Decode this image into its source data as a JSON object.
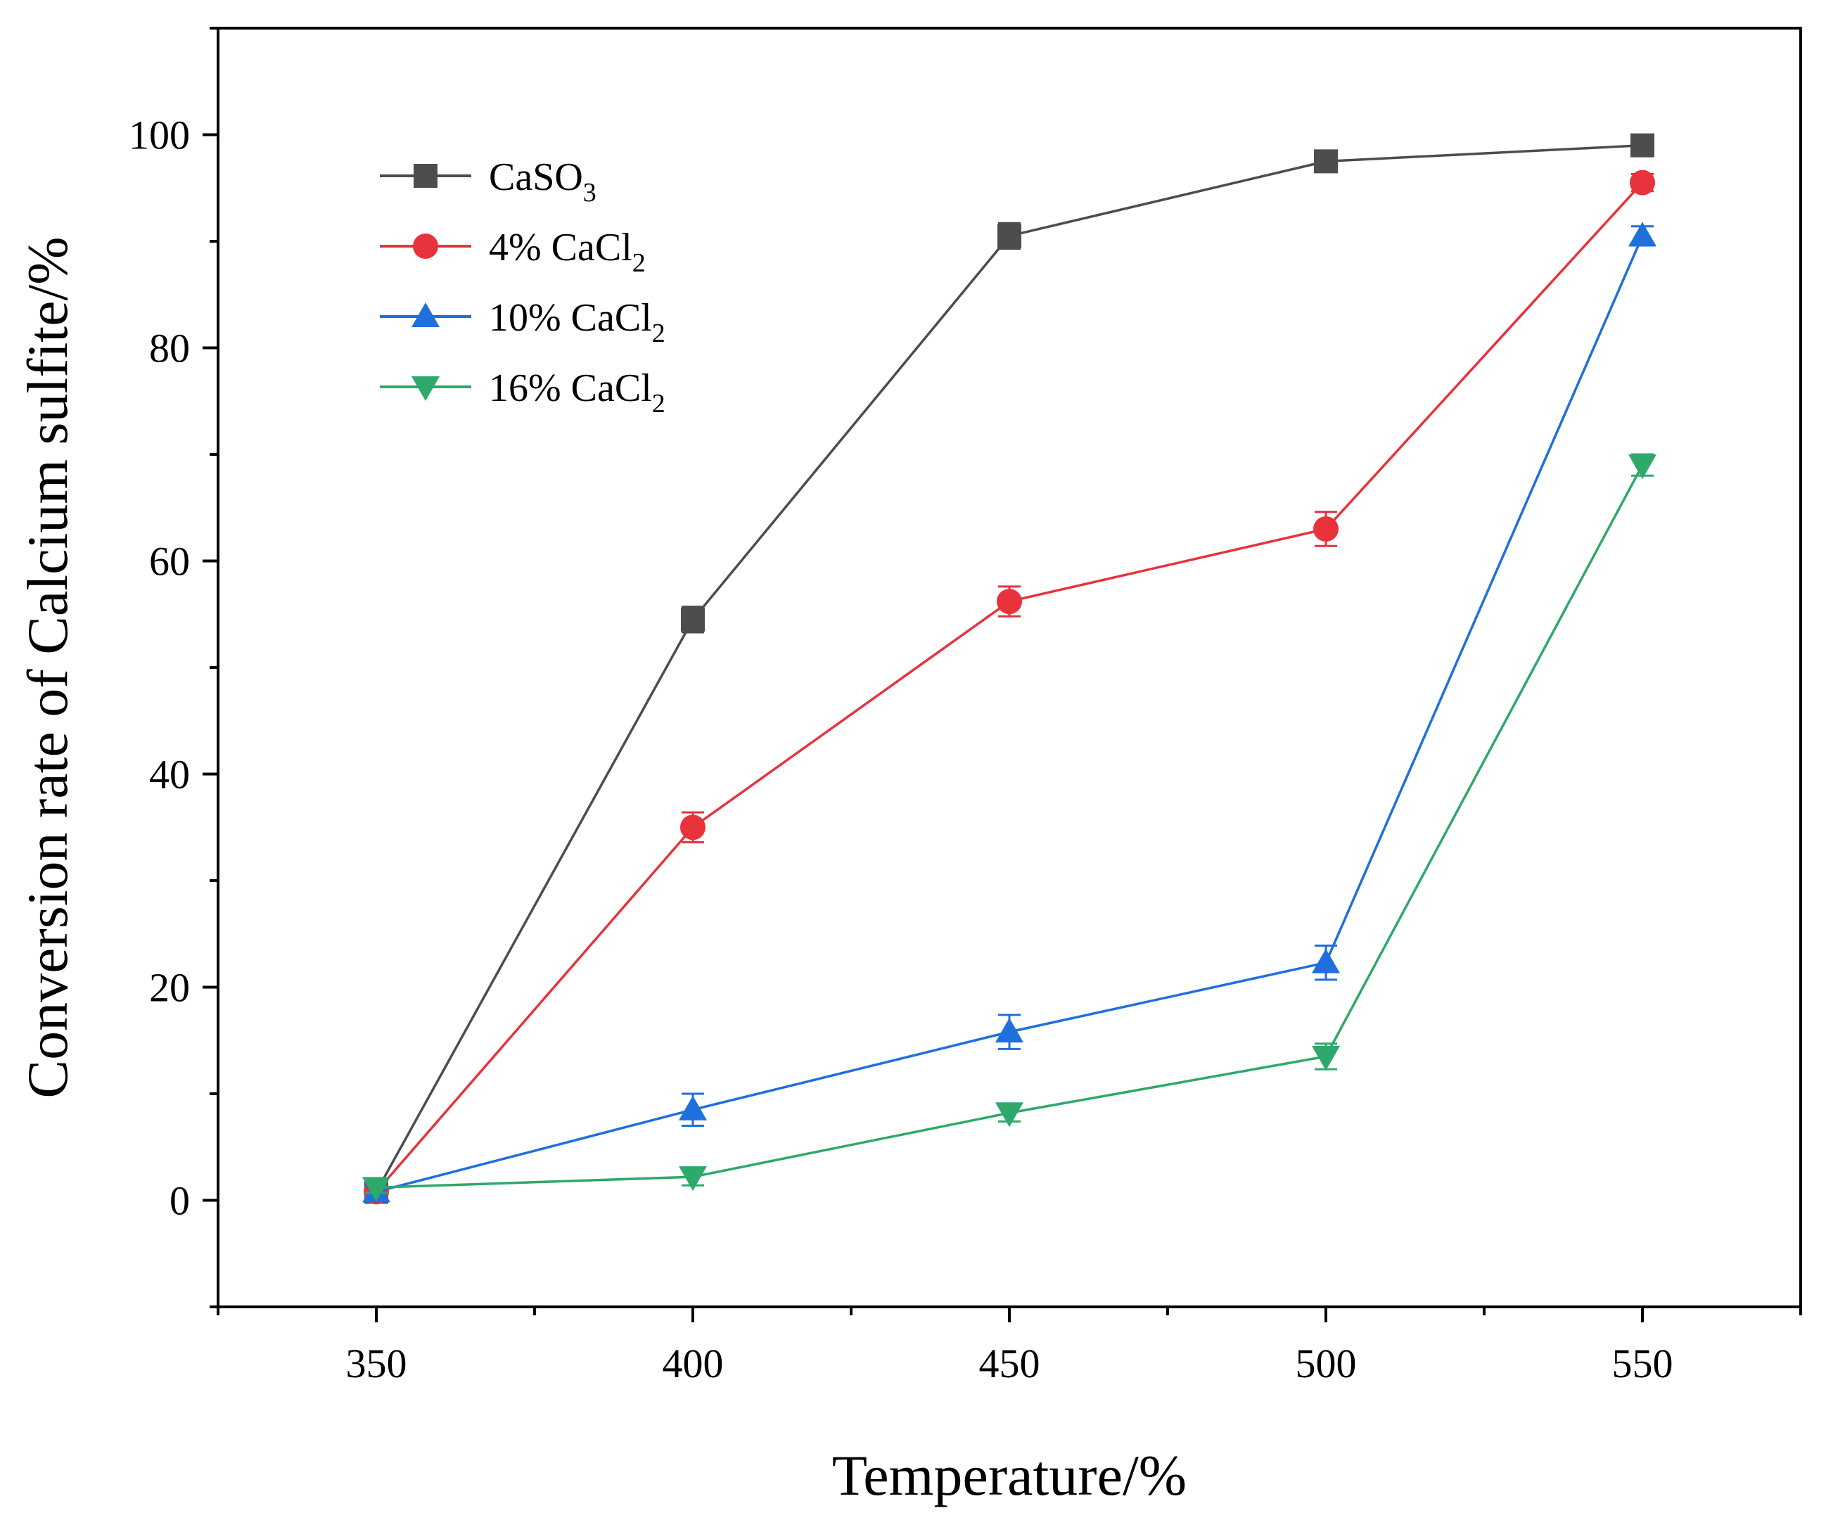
{
  "chart_data": {
    "type": "line",
    "title": "",
    "xlabel": "Temperature/%",
    "ylabel": "Conversion rate of Calcium sulfite/%",
    "x": [
      350,
      400,
      450,
      500,
      550
    ],
    "xlim": [
      325,
      575
    ],
    "ylim": [
      -10,
      110
    ],
    "x_ticks": [
      "350",
      "400",
      "450",
      "500",
      "550"
    ],
    "y_ticks": [
      "0",
      "20",
      "40",
      "60",
      "80",
      "100"
    ],
    "legend_position": "top-left",
    "series": [
      {
        "name": "CaSO",
        "name_sub": "3",
        "color": "#4d4d4d",
        "marker": "square",
        "values": [
          0.8,
          54.5,
          90.5,
          97.5,
          99.0
        ],
        "errors": [
          0.5,
          1.2,
          1.2,
          1.0,
          0.8
        ]
      },
      {
        "name": "4% CaCl",
        "name_sub": "2",
        "color": "#e8323c",
        "marker": "circle",
        "values": [
          0.8,
          35.0,
          56.2,
          63.0,
          95.5
        ],
        "errors": [
          0.5,
          1.4,
          1.4,
          1.6,
          0.8
        ]
      },
      {
        "name": "10% CaCl",
        "name_sub": "2",
        "color": "#1f6fdc",
        "marker": "triangle-up",
        "values": [
          0.8,
          8.5,
          15.8,
          22.3,
          90.5
        ],
        "errors": [
          0.5,
          1.5,
          1.6,
          1.6,
          0.9
        ]
      },
      {
        "name": "16% CaCl",
        "name_sub": "2",
        "color": "#2ea86b",
        "marker": "triangle-down",
        "values": [
          1.2,
          2.2,
          8.2,
          13.5,
          69.0
        ],
        "errors": [
          0.5,
          0.8,
          0.8,
          1.2,
          1.0
        ]
      }
    ]
  }
}
